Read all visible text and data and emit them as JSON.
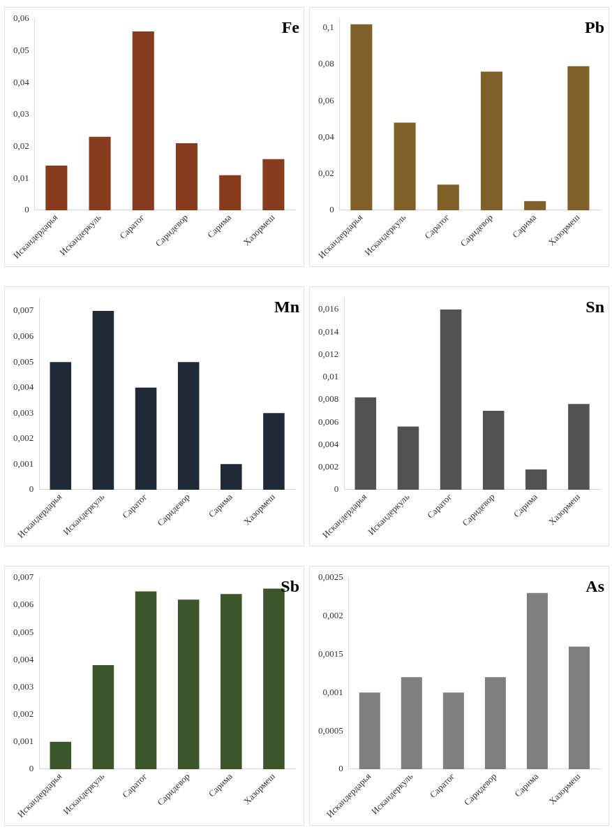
{
  "chart_data": [
    {
      "type": "bar",
      "title": "Fe",
      "categories": [
        "Искандердарья",
        "Искандеркуль",
        "Саратог",
        "Саридевор",
        "Сарима",
        "Хазормеш"
      ],
      "values": [
        0.014,
        0.023,
        0.056,
        0.021,
        0.011,
        0.016
      ],
      "color": "#873c1e",
      "ylim": [
        0,
        0.06
      ],
      "yticks": [
        {
          "value": 0,
          "label": "0"
        },
        {
          "value": 0.01,
          "label": "0,01"
        },
        {
          "value": 0.02,
          "label": "0,02"
        },
        {
          "value": 0.03,
          "label": "0,03"
        },
        {
          "value": 0.04,
          "label": "0,04"
        },
        {
          "value": 0.05,
          "label": "0,05"
        },
        {
          "value": 0.06,
          "label": "0,06"
        }
      ]
    },
    {
      "type": "bar",
      "title": "Pb",
      "categories": [
        "Искандердарья",
        "Искандеркуль",
        "Саратог",
        "Саридевор",
        "Сарима",
        "Хазормеш"
      ],
      "values": [
        0.102,
        0.048,
        0.014,
        0.076,
        0.005,
        0.079
      ],
      "color": "#7f6029",
      "ylim": [
        0,
        0.105
      ],
      "yticks": [
        {
          "value": 0,
          "label": "0"
        },
        {
          "value": 0.02,
          "label": "0,02"
        },
        {
          "value": 0.04,
          "label": "0,04"
        },
        {
          "value": 0.06,
          "label": "0,06"
        },
        {
          "value": 0.08,
          "label": "0,08"
        },
        {
          "value": 0.1,
          "label": "0,1"
        }
      ]
    },
    {
      "type": "bar",
      "title": "Mn",
      "categories": [
        "Искандердарья",
        "Искандеркуль",
        "Саратог",
        "Саридевор",
        "Сарима",
        "Хазормеш"
      ],
      "values": [
        0.005,
        0.007,
        0.004,
        0.005,
        0.001,
        0.003
      ],
      "color": "#1f2a36",
      "ylim": [
        0,
        0.0075
      ],
      "yticks": [
        {
          "value": 0,
          "label": "0"
        },
        {
          "value": 0.001,
          "label": "0,001"
        },
        {
          "value": 0.002,
          "label": "0,002"
        },
        {
          "value": 0.003,
          "label": "0,003"
        },
        {
          "value": 0.004,
          "label": "0,004"
        },
        {
          "value": 0.005,
          "label": "0,005"
        },
        {
          "value": 0.006,
          "label": "0,006"
        },
        {
          "value": 0.007,
          "label": "0,007"
        }
      ]
    },
    {
      "type": "bar",
      "title": "Sn",
      "categories": [
        "Искандердарья",
        "Искандеркуль",
        "Саратог",
        "Саридевор",
        "Сарима",
        "Хазормеш"
      ],
      "values": [
        0.0082,
        0.0056,
        0.016,
        0.007,
        0.0018,
        0.0076
      ],
      "color": "#525252",
      "ylim": [
        0,
        0.017
      ],
      "yticks": [
        {
          "value": 0,
          "label": "0"
        },
        {
          "value": 0.002,
          "label": "0,002"
        },
        {
          "value": 0.004,
          "label": "0,004"
        },
        {
          "value": 0.006,
          "label": "0,006"
        },
        {
          "value": 0.008,
          "label": "0,008"
        },
        {
          "value": 0.01,
          "label": "0,01"
        },
        {
          "value": 0.012,
          "label": "0,012"
        },
        {
          "value": 0.014,
          "label": "0,014"
        },
        {
          "value": 0.016,
          "label": "0,016"
        }
      ]
    },
    {
      "type": "bar",
      "title": "Sb",
      "categories": [
        "Искандердарья",
        "Искандеркуль",
        "Саратог",
        "Саридевор",
        "Сарима",
        "Хазормеш"
      ],
      "values": [
        0.001,
        0.0038,
        0.0065,
        0.0062,
        0.0064,
        0.0066
      ],
      "color": "#3b562a",
      "ylim": [
        0,
        0.007
      ],
      "yticks": [
        {
          "value": 0,
          "label": "0"
        },
        {
          "value": 0.001,
          "label": "0,001"
        },
        {
          "value": 0.002,
          "label": "0,002"
        },
        {
          "value": 0.003,
          "label": "0,003"
        },
        {
          "value": 0.004,
          "label": "0,004"
        },
        {
          "value": 0.005,
          "label": "0,005"
        },
        {
          "value": 0.006,
          "label": "0,006"
        },
        {
          "value": 0.007,
          "label": "0,007"
        }
      ]
    },
    {
      "type": "bar",
      "title": "As",
      "categories": [
        "Искандердарья",
        "Искандеркуль",
        "Саратог",
        "Саридевор",
        "Сарима",
        "Хазормеш"
      ],
      "values": [
        0.001,
        0.0012,
        0.001,
        0.0012,
        0.0023,
        0.0016
      ],
      "color": "#7f7f7f",
      "ylim": [
        0,
        0.0025
      ],
      "yticks": [
        {
          "value": 0,
          "label": "0"
        },
        {
          "value": 0.0005,
          "label": "0,0005"
        },
        {
          "value": 0.001,
          "label": "0,001"
        },
        {
          "value": 0.0015,
          "label": "0,0015"
        },
        {
          "value": 0.002,
          "label": "0,002"
        },
        {
          "value": 0.0025,
          "label": "0,0025"
        }
      ]
    }
  ]
}
